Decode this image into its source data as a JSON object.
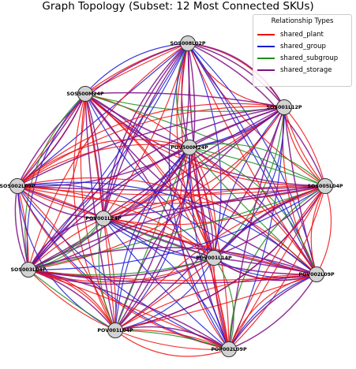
{
  "title": "Graph Topology (Subset: 12 Most Connected SKUs)",
  "legend": {
    "title": "Relationship Types",
    "items": [
      {
        "label": "shared_plant",
        "color": "#ee1111"
      },
      {
        "label": "shared_group",
        "color": "#1a1ad6"
      },
      {
        "label": "shared_subgroup",
        "color": "#1e8c1e"
      },
      {
        "label": "shared_storage",
        "color": "#7f0f86"
      }
    ]
  },
  "nodes": [
    {
      "id": "SOS008L02P"
    },
    {
      "id": "SOS500M24P"
    },
    {
      "id": "SOS001L12P"
    },
    {
      "id": "POV500M24P"
    },
    {
      "id": "SOS002L09P"
    },
    {
      "id": "SOS005L04P"
    },
    {
      "id": "POV001L24P"
    },
    {
      "id": "POV001L14P"
    },
    {
      "id": "SOS003L04P"
    },
    {
      "id": "POV002L09P"
    },
    {
      "id": "POV001L04P"
    },
    {
      "id": "POP002L09P"
    }
  ],
  "node_style": {
    "fill": "#d3d3d3",
    "stroke": "#333333"
  }
}
